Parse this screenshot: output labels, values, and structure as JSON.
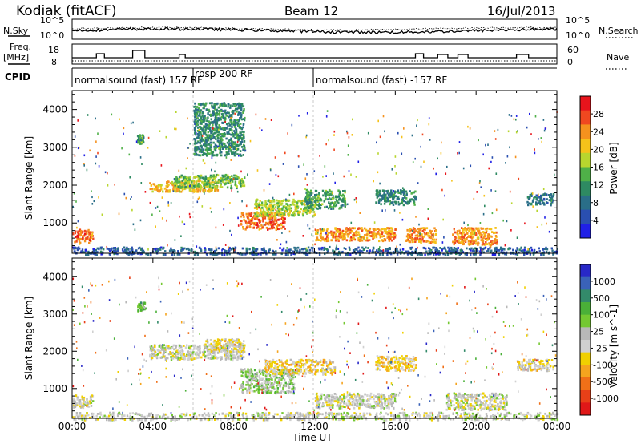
{
  "header": {
    "station": "Kodiak  (fitACF)",
    "beam": "Beam 12",
    "date": "16/Jul/2013"
  },
  "noise_panel": {
    "left_label": "N.Sky",
    "right_label": "N.Search",
    "left_ticks": [
      "10^5",
      "10^0"
    ],
    "right_ticks": [
      "10^5",
      "10^0"
    ]
  },
  "freq_panel": {
    "left_label_line1": "Freq.",
    "left_label_line2": "[MHz]",
    "right_label": "Nave",
    "left_ticks": [
      "18",
      "8"
    ],
    "right_ticks": [
      "60",
      "0"
    ]
  },
  "cpid": {
    "label": "CPID",
    "segments": [
      "normalsound (fast) 157 RF",
      "rbsp 200 RF",
      "normalsound (fast) -157 RF"
    ]
  },
  "x_axis": {
    "title": "Time UT",
    "ticks": [
      "00:00",
      "04:00",
      "08:00",
      "12:00",
      "16:00",
      "20:00",
      "00:00"
    ]
  },
  "power_colorbar": {
    "title": "Power [dB]",
    "ticks": [
      "28",
      "24",
      "20",
      "16",
      "12",
      "8",
      "4"
    ],
    "colors": [
      "#e8141c",
      "#f04820",
      "#f5921e",
      "#f5c21a",
      "#b8d62e",
      "#4fb048",
      "#2e8a62",
      "#2a6e88",
      "#2a4fb0",
      "#2020e6"
    ]
  },
  "velocity_colorbar": {
    "title": "Velocity [m s^-1]",
    "ticks": [
      "1000",
      "500",
      "100",
      "25",
      "-25",
      "-100",
      "-500",
      "-1000"
    ],
    "colors": [
      "#2828c8",
      "#3a62b8",
      "#338a6a",
      "#4ab038",
      "#74c832",
      "#b8b8b8",
      "#d0d0d0",
      "#f0d000",
      "#f5a41e",
      "#f07018",
      "#e84018",
      "#e01818"
    ]
  },
  "chart_data": [
    {
      "type": "heatmap",
      "title": "Power",
      "ylabel": "Slant Range [km]",
      "xlabel": "",
      "x_unit": "hours UT",
      "xlim": [
        0,
        24
      ],
      "ylim": [
        200,
        4500
      ],
      "yticks": [
        "1000",
        "2000",
        "3000",
        "4000"
      ],
      "xticks": [
        "00:00",
        "04:00",
        "08:00",
        "12:00",
        "16:00",
        "20:00",
        "00:00"
      ],
      "colorbar_label": "Power [dB]",
      "clim": [
        0,
        30
      ],
      "regions": [
        {
          "t0": 0.0,
          "t1": 1.0,
          "r0": 500,
          "r1": 850,
          "v": 24
        },
        {
          "t0": 0.0,
          "t1": 24.0,
          "r0": 180,
          "r1": 380,
          "v": 6
        },
        {
          "t0": 3.8,
          "t1": 7.2,
          "r0": 1850,
          "r1": 2150,
          "v": 20
        },
        {
          "t0": 5.0,
          "t1": 8.5,
          "r0": 1950,
          "r1": 2300,
          "v": 14
        },
        {
          "t0": 8.3,
          "t1": 10.5,
          "r0": 850,
          "r1": 1300,
          "v": 24
        },
        {
          "t0": 9.0,
          "t1": 12.0,
          "r0": 1200,
          "r1": 1650,
          "v": 16
        },
        {
          "t0": 11.5,
          "t1": 13.5,
          "r0": 1400,
          "r1": 1900,
          "v": 12
        },
        {
          "t0": 12.0,
          "t1": 16.0,
          "r0": 550,
          "r1": 900,
          "v": 22
        },
        {
          "t0": 15.0,
          "t1": 17.0,
          "r0": 1500,
          "r1": 1900,
          "v": 10
        },
        {
          "t0": 16.5,
          "t1": 18.0,
          "r0": 500,
          "r1": 900,
          "v": 22
        },
        {
          "t0": 18.8,
          "t1": 21.0,
          "r0": 450,
          "r1": 900,
          "v": 22
        },
        {
          "t0": 22.5,
          "t1": 23.8,
          "r0": 1500,
          "r1": 1800,
          "v": 8
        },
        {
          "t0": 6.0,
          "t1": 8.5,
          "r0": 2800,
          "r1": 4200,
          "v": 10
        },
        {
          "t0": 3.2,
          "t1": 3.5,
          "r0": 3100,
          "r1": 3350,
          "v": 12
        }
      ]
    },
    {
      "type": "heatmap",
      "title": "Velocity",
      "ylabel": "Slant Range [km]",
      "xlabel": "Time UT",
      "x_unit": "hours UT",
      "xlim": [
        0,
        24
      ],
      "ylim": [
        200,
        4500
      ],
      "yticks": [
        "1000",
        "2000",
        "3000",
        "4000"
      ],
      "xticks": [
        "00:00",
        "04:00",
        "08:00",
        "12:00",
        "16:00",
        "20:00",
        "00:00"
      ],
      "colorbar_label": "Velocity [m s^-1]",
      "clim": [
        -1000,
        1000
      ],
      "regions": [
        {
          "t0": 0.0,
          "t1": 1.0,
          "r0": 500,
          "r1": 850,
          "v": -40
        },
        {
          "t0": 0.0,
          "t1": 24.0,
          "r0": 180,
          "r1": 380,
          "v": 10
        },
        {
          "t0": 3.8,
          "t1": 8.5,
          "r0": 1800,
          "r1": 2200,
          "v": 5
        },
        {
          "t0": 6.5,
          "t1": 8.5,
          "r0": 2000,
          "r1": 2350,
          "v": -120
        },
        {
          "t0": 8.3,
          "t1": 11.0,
          "r0": 900,
          "r1": 1550,
          "v": 150
        },
        {
          "t0": 9.5,
          "t1": 13.0,
          "r0": 1400,
          "r1": 1800,
          "v": -200
        },
        {
          "t0": 12.0,
          "t1": 16.0,
          "r0": 500,
          "r1": 900,
          "v": 0
        },
        {
          "t0": 15.0,
          "t1": 17.0,
          "r0": 1500,
          "r1": 1900,
          "v": -250
        },
        {
          "t0": 18.5,
          "t1": 21.5,
          "r0": 450,
          "r1": 900,
          "v": 5
        },
        {
          "t0": 22.0,
          "t1": 23.8,
          "r0": 1500,
          "r1": 1800,
          "v": -120
        },
        {
          "t0": 3.2,
          "t1": 3.6,
          "r0": 3100,
          "r1": 3350,
          "v": 300
        }
      ]
    }
  ]
}
